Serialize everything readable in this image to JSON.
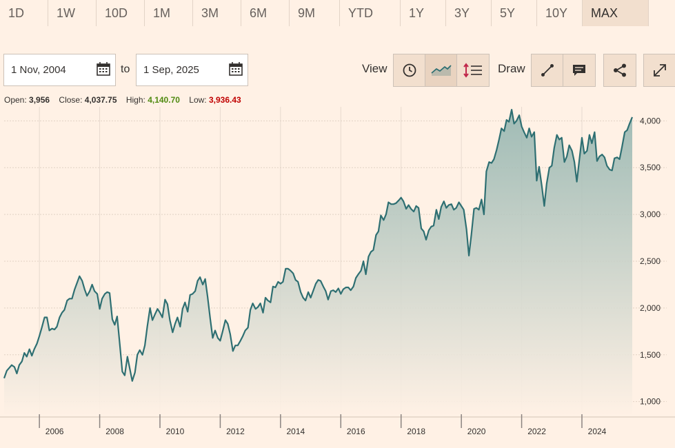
{
  "range_tabs": [
    {
      "label": "1D",
      "active": false
    },
    {
      "label": "1W",
      "active": false
    },
    {
      "label": "10D",
      "active": false
    },
    {
      "label": "1M",
      "active": false
    },
    {
      "label": "3M",
      "active": false
    },
    {
      "label": "6M",
      "active": false
    },
    {
      "label": "9M",
      "active": false
    },
    {
      "label": "YTD",
      "active": false
    },
    {
      "label": "1Y",
      "active": false
    },
    {
      "label": "3Y",
      "active": false
    },
    {
      "label": "5Y",
      "active": false
    },
    {
      "label": "10Y",
      "active": false
    },
    {
      "label": "MAX",
      "active": true
    }
  ],
  "date_range": {
    "from": "1 Nov, 2004",
    "to_label": "to",
    "to": "1 Sep, 2025"
  },
  "toolbar": {
    "view_label": "View",
    "draw_label": "Draw",
    "view_buttons": [
      "clock-icon",
      "line-chart-icon",
      "ruler-list-icon"
    ],
    "draw_buttons": [
      "line-draw-icon",
      "comment-icon"
    ],
    "share_icon": "share-icon",
    "expand_icon": "expand-icon"
  },
  "stats": {
    "open_label": "Open:",
    "open": "3,956",
    "close_label": "Close:",
    "close": "4,037.75",
    "high_label": "High:",
    "high": "4,140.70",
    "low_label": "Low:",
    "low": "3,936.43",
    "high_color": "#4f8a10",
    "low_color": "#c00000"
  },
  "chart_data": {
    "type": "area",
    "line_color": "#2e6f72",
    "grid": true,
    "ylim": [
      850,
      4150
    ],
    "xlim": [
      2004.83,
      2025.67
    ],
    "y_ticks": [
      1000,
      1500,
      2000,
      2500,
      3000,
      3500,
      4000
    ],
    "y_tick_labels": [
      "1,000",
      "1,500",
      "2,000",
      "2,500",
      "3,000",
      "3,500",
      "4,000"
    ],
    "x_ticks": [
      2006,
      2008,
      2010,
      2012,
      2014,
      2016,
      2018,
      2020,
      2022,
      2024
    ],
    "x_tick_labels": [
      "2006",
      "2008",
      "2010",
      "2012",
      "2014",
      "2016",
      "2018",
      "2020",
      "2022",
      "2024"
    ],
    "series": [
      {
        "x": [
          2004.83,
          2004.92,
          2005.0,
          2005.08,
          2005.17,
          2005.25,
          2005.33,
          2005.42,
          2005.5,
          2005.58,
          2005.67,
          2005.75,
          2005.83,
          2005.92,
          2006.0,
          2006.08,
          2006.17,
          2006.25,
          2006.33,
          2006.42,
          2006.5,
          2006.58,
          2006.67,
          2006.75,
          2006.83,
          2006.92,
          2007.0,
          2007.08,
          2007.17,
          2007.25,
          2007.33,
          2007.42,
          2007.5,
          2007.58,
          2007.67,
          2007.75,
          2007.83,
          2007.92,
          2008.0,
          2008.08,
          2008.17,
          2008.25,
          2008.33,
          2008.42,
          2008.5,
          2008.58,
          2008.67,
          2008.75,
          2008.83,
          2008.92,
          2009.0,
          2009.08,
          2009.17,
          2009.25,
          2009.33,
          2009.42,
          2009.5,
          2009.58,
          2009.67,
          2009.75,
          2009.83,
          2009.92,
          2010.0,
          2010.08,
          2010.17,
          2010.25,
          2010.33,
          2010.42,
          2010.5,
          2010.58,
          2010.67,
          2010.75,
          2010.83,
          2010.92,
          2011.0,
          2011.08,
          2011.17,
          2011.25,
          2011.33,
          2011.42,
          2011.5,
          2011.58,
          2011.67,
          2011.75,
          2011.83,
          2011.92,
          2012.0,
          2012.08,
          2012.17,
          2012.25,
          2012.33,
          2012.42,
          2012.5,
          2012.58,
          2012.67,
          2012.75,
          2012.83,
          2012.92,
          2013.0,
          2013.08,
          2013.17,
          2013.25,
          2013.33,
          2013.42,
          2013.5,
          2013.58,
          2013.67,
          2013.75,
          2013.83,
          2013.92,
          2014.0,
          2014.08,
          2014.17,
          2014.25,
          2014.33,
          2014.42,
          2014.5,
          2014.58,
          2014.67,
          2014.75,
          2014.83,
          2014.92,
          2015.0,
          2015.08,
          2015.17,
          2015.25,
          2015.33,
          2015.42,
          2015.5,
          2015.58,
          2015.67,
          2015.75,
          2015.83,
          2015.92,
          2016.0,
          2016.08,
          2016.17,
          2016.25,
          2016.33,
          2016.42,
          2016.5,
          2016.58,
          2016.67,
          2016.75,
          2016.83,
          2016.92,
          2017.0,
          2017.08,
          2017.17,
          2017.25,
          2017.33,
          2017.42,
          2017.5,
          2017.58,
          2017.67,
          2017.75,
          2017.83,
          2017.92,
          2018.0,
          2018.08,
          2018.17,
          2018.25,
          2018.33,
          2018.42,
          2018.5,
          2018.58,
          2018.67,
          2018.75,
          2018.83,
          2018.92,
          2019.0,
          2019.08,
          2019.17,
          2019.25,
          2019.33,
          2019.42,
          2019.5,
          2019.58,
          2019.67,
          2019.75,
          2019.83,
          2019.92,
          2020.0,
          2020.08,
          2020.17,
          2020.25,
          2020.33,
          2020.42,
          2020.5,
          2020.58,
          2020.67,
          2020.75,
          2020.83,
          2020.92,
          2021.0,
          2021.08,
          2021.17,
          2021.25,
          2021.33,
          2021.42,
          2021.5,
          2021.58,
          2021.67,
          2021.75,
          2021.83,
          2021.92,
          2022.0,
          2022.08,
          2022.17,
          2022.25,
          2022.33,
          2022.42,
          2022.5,
          2022.58,
          2022.67,
          2022.75,
          2022.83,
          2022.92,
          2023.0,
          2023.08,
          2023.17,
          2023.25,
          2023.33,
          2023.42,
          2023.5,
          2023.58,
          2023.67,
          2023.75,
          2023.83,
          2023.92,
          2024.0,
          2024.08,
          2024.17,
          2024.25,
          2024.33,
          2024.42,
          2024.5,
          2024.58,
          2024.67,
          2024.75,
          2024.83,
          2024.92,
          2025.0,
          2025.08,
          2025.17,
          2025.25,
          2025.33,
          2025.42,
          2025.5,
          2025.58,
          2025.67
        ],
        "values": [
          1250,
          1330,
          1360,
          1390,
          1370,
          1300,
          1390,
          1430,
          1520,
          1480,
          1560,
          1490,
          1560,
          1620,
          1700,
          1790,
          1900,
          1900,
          1760,
          1780,
          1770,
          1800,
          1900,
          1950,
          1980,
          2080,
          2100,
          2100,
          2200,
          2270,
          2340,
          2290,
          2200,
          2130,
          2180,
          2250,
          2180,
          2150,
          1990,
          2100,
          2150,
          2170,
          2160,
          1880,
          1820,
          1910,
          1600,
          1320,
          1280,
          1480,
          1350,
          1220,
          1310,
          1500,
          1550,
          1500,
          1600,
          1800,
          2000,
          1870,
          1930,
          1990,
          1950,
          1900,
          2090,
          2040,
          1870,
          1740,
          1830,
          1900,
          1800,
          1990,
          2060,
          1960,
          2140,
          2150,
          2180,
          2290,
          2330,
          2250,
          2310,
          2120,
          1880,
          1680,
          1760,
          1680,
          1650,
          1750,
          1870,
          1830,
          1720,
          1540,
          1600,
          1600,
          1650,
          1700,
          1760,
          1790,
          1980,
          2050,
          1990,
          2010,
          2050,
          1950,
          2110,
          2080,
          2060,
          2230,
          2220,
          2280,
          2260,
          2280,
          2420,
          2420,
          2400,
          2370,
          2300,
          2280,
          2170,
          2110,
          2080,
          2170,
          2110,
          2180,
          2260,
          2300,
          2290,
          2230,
          2180,
          2090,
          2180,
          2190,
          2170,
          2210,
          2150,
          2200,
          2220,
          2220,
          2190,
          2230,
          2320,
          2360,
          2400,
          2500,
          2360,
          2550,
          2600,
          2620,
          2780,
          2820,
          2990,
          2940,
          3000,
          3130,
          3110,
          3110,
          3120,
          3150,
          3180,
          3140,
          3060,
          3100,
          3060,
          3030,
          3090,
          3070,
          2850,
          2820,
          2730,
          2830,
          2870,
          2880,
          3050,
          2950,
          3080,
          3140,
          3070,
          3100,
          3110,
          3050,
          3070,
          3130,
          3090,
          3050,
          2840,
          2560,
          2780,
          3060,
          3070,
          3050,
          3160,
          3000,
          3460,
          3560,
          3550,
          3590,
          3690,
          3800,
          3920,
          3890,
          4010,
          3990,
          4120,
          3970,
          4000,
          4060,
          3940,
          3880,
          3820,
          3920,
          3830,
          3880,
          3360,
          3510,
          3300,
          3090,
          3330,
          3500,
          3520,
          3710,
          3850,
          3800,
          3820,
          3560,
          3620,
          3740,
          3680,
          3560,
          3350,
          3600,
          3820,
          3650,
          3680,
          3850,
          3760,
          3880,
          3570,
          3620,
          3640,
          3610,
          3520,
          3480,
          3470,
          3600,
          3610,
          3590,
          3720,
          3880,
          3900,
          3970,
          4040
        ]
      }
    ]
  }
}
